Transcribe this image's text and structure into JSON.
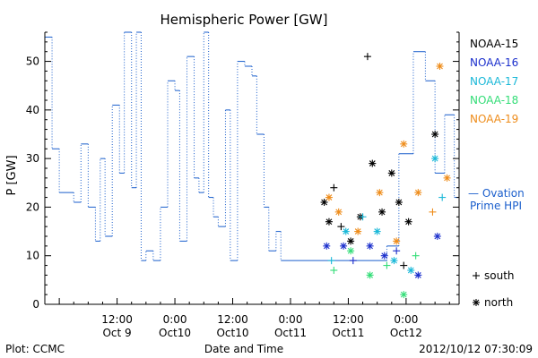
{
  "chart_data": {
    "type": "line",
    "title": "Hemispheric Power [GW]",
    "ylabel": "P [GW]",
    "xlabel": "Date and Time",
    "ylim": [
      0,
      56
    ],
    "yticks": [
      0,
      10,
      20,
      30,
      40,
      50
    ],
    "xlim": [
      "2012-10-08T21:00",
      "2012-10-12T11:00"
    ],
    "xticks": [
      {
        "t": "2012-10-09T12:00",
        "line1": "12:00",
        "line2": "Oct 9"
      },
      {
        "t": "2012-10-10T00:00",
        "line1": "0:00",
        "line2": "Oct10"
      },
      {
        "t": "2012-10-10T12:00",
        "line1": "12:00",
        "line2": "Oct10"
      },
      {
        "t": "2012-10-11T00:00",
        "line1": "0:00",
        "line2": "Oct11"
      },
      {
        "t": "2012-10-11T12:00",
        "line1": "12:00",
        "line2": "Oct11"
      },
      {
        "t": "2012-10-12T00:00",
        "line1": "0:00",
        "line2": "Oct12"
      }
    ],
    "grid": false,
    "legend_position": "right",
    "series": [
      {
        "name": "NOAA-15",
        "color": "#000000"
      },
      {
        "name": "NOAA-16",
        "color": "#1a2ecc"
      },
      {
        "name": "NOAA-17",
        "color": "#1ab8d8"
      },
      {
        "name": "NOAA-18",
        "color": "#33dd77"
      },
      {
        "name": "NOAA-19",
        "color": "#ee8c1a"
      }
    ],
    "ovation_label": [
      "— Ovation",
      "Prime HPI"
    ],
    "ovation_color": "#1a5ecc",
    "marker_legend": [
      {
        "symbol": "+",
        "label": "south"
      },
      {
        "symbol": "*",
        "label": "north"
      }
    ],
    "ovation_steps": [
      [
        "2012-10-08T21:00",
        55
      ],
      [
        "2012-10-08T22:30",
        32
      ],
      [
        "2012-10-09T00:00",
        23
      ],
      [
        "2012-10-09T03:00",
        21
      ],
      [
        "2012-10-09T04:30",
        33
      ],
      [
        "2012-10-09T06:00",
        20
      ],
      [
        "2012-10-09T07:30",
        13
      ],
      [
        "2012-10-09T08:30",
        30
      ],
      [
        "2012-10-09T09:30",
        14
      ],
      [
        "2012-10-09T11:00",
        41
      ],
      [
        "2012-10-09T12:30",
        27
      ],
      [
        "2012-10-09T13:30",
        56
      ],
      [
        "2012-10-09T15:00",
        24
      ],
      [
        "2012-10-09T16:00",
        56
      ],
      [
        "2012-10-09T17:00",
        9
      ],
      [
        "2012-10-09T18:00",
        11
      ],
      [
        "2012-10-09T19:30",
        9
      ],
      [
        "2012-10-09T21:00",
        20
      ],
      [
        "2012-10-09T22:30",
        46
      ],
      [
        "2012-10-10T00:00",
        44
      ],
      [
        "2012-10-10T01:00",
        13
      ],
      [
        "2012-10-10T02:30",
        51
      ],
      [
        "2012-10-10T04:00",
        26
      ],
      [
        "2012-10-10T05:00",
        23
      ],
      [
        "2012-10-10T06:00",
        56
      ],
      [
        "2012-10-10T07:00",
        22
      ],
      [
        "2012-10-10T08:00",
        18
      ],
      [
        "2012-10-10T09:00",
        16
      ],
      [
        "2012-10-10T10:30",
        40
      ],
      [
        "2012-10-10T11:30",
        9
      ],
      [
        "2012-10-10T13:00",
        50
      ],
      [
        "2012-10-10T14:30",
        49
      ],
      [
        "2012-10-10T16:00",
        47
      ],
      [
        "2012-10-10T17:00",
        35
      ],
      [
        "2012-10-10T18:30",
        20
      ],
      [
        "2012-10-10T19:30",
        11
      ],
      [
        "2012-10-10T21:00",
        15
      ],
      [
        "2012-10-10T22:00",
        9
      ],
      [
        "2012-10-11T20:00",
        12
      ],
      [
        "2012-10-11T22:30",
        31
      ],
      [
        "2012-10-12T01:30",
        52
      ],
      [
        "2012-10-12T04:00",
        46
      ],
      [
        "2012-10-12T06:00",
        27
      ],
      [
        "2012-10-12T08:00",
        39
      ],
      [
        "2012-10-12T10:00",
        22
      ]
    ],
    "points": [
      {
        "t": "2012-10-11T07:00",
        "y": 21,
        "series": "NOAA-15",
        "marker": "*"
      },
      {
        "t": "2012-10-11T08:00",
        "y": 17,
        "series": "NOAA-15",
        "marker": "*"
      },
      {
        "t": "2012-10-11T09:00",
        "y": 24,
        "series": "NOAA-15",
        "marker": "+"
      },
      {
        "t": "2012-10-11T10:30",
        "y": 16,
        "series": "NOAA-15",
        "marker": "+"
      },
      {
        "t": "2012-10-11T12:30",
        "y": 13,
        "series": "NOAA-15",
        "marker": "*"
      },
      {
        "t": "2012-10-11T14:30",
        "y": 18,
        "series": "NOAA-15",
        "marker": "*"
      },
      {
        "t": "2012-10-11T16:00",
        "y": 51,
        "series": "NOAA-15",
        "marker": "+"
      },
      {
        "t": "2012-10-11T17:00",
        "y": 29,
        "series": "NOAA-15",
        "marker": "*"
      },
      {
        "t": "2012-10-11T19:00",
        "y": 19,
        "series": "NOAA-15",
        "marker": "*"
      },
      {
        "t": "2012-10-11T21:00",
        "y": 27,
        "series": "NOAA-15",
        "marker": "*"
      },
      {
        "t": "2012-10-11T22:30",
        "y": 21,
        "series": "NOAA-15",
        "marker": "*"
      },
      {
        "t": "2012-10-11T23:30",
        "y": 8,
        "series": "NOAA-15",
        "marker": "+"
      },
      {
        "t": "2012-10-12T00:30",
        "y": 17,
        "series": "NOAA-15",
        "marker": "*"
      },
      {
        "t": "2012-10-12T06:00",
        "y": 35,
        "series": "NOAA-15",
        "marker": "*"
      },
      {
        "t": "2012-10-11T07:30",
        "y": 12,
        "series": "NOAA-16",
        "marker": "*"
      },
      {
        "t": "2012-10-11T11:00",
        "y": 12,
        "series": "NOAA-16",
        "marker": "*"
      },
      {
        "t": "2012-10-11T13:00",
        "y": 9,
        "series": "NOAA-16",
        "marker": "+"
      },
      {
        "t": "2012-10-11T16:30",
        "y": 12,
        "series": "NOAA-16",
        "marker": "*"
      },
      {
        "t": "2012-10-11T19:30",
        "y": 10,
        "series": "NOAA-16",
        "marker": "*"
      },
      {
        "t": "2012-10-11T22:00",
        "y": 11,
        "series": "NOAA-16",
        "marker": "+"
      },
      {
        "t": "2012-10-12T02:30",
        "y": 6,
        "series": "NOAA-16",
        "marker": "*"
      },
      {
        "t": "2012-10-12T06:30",
        "y": 14,
        "series": "NOAA-16",
        "marker": "*"
      },
      {
        "t": "2012-10-11T08:30",
        "y": 9,
        "series": "NOAA-17",
        "marker": "+"
      },
      {
        "t": "2012-10-11T11:30",
        "y": 15,
        "series": "NOAA-17",
        "marker": "*"
      },
      {
        "t": "2012-10-11T15:00",
        "y": 18,
        "series": "NOAA-17",
        "marker": "+"
      },
      {
        "t": "2012-10-11T18:00",
        "y": 15,
        "series": "NOAA-17",
        "marker": "*"
      },
      {
        "t": "2012-10-11T21:30",
        "y": 9,
        "series": "NOAA-17",
        "marker": "*"
      },
      {
        "t": "2012-10-12T01:00",
        "y": 7,
        "series": "NOAA-17",
        "marker": "*"
      },
      {
        "t": "2012-10-12T06:00",
        "y": 30,
        "series": "NOAA-17",
        "marker": "*"
      },
      {
        "t": "2012-10-12T07:30",
        "y": 22,
        "series": "NOAA-17",
        "marker": "+"
      },
      {
        "t": "2012-10-11T09:00",
        "y": 7,
        "series": "NOAA-18",
        "marker": "+"
      },
      {
        "t": "2012-10-11T12:30",
        "y": 11,
        "series": "NOAA-18",
        "marker": "*"
      },
      {
        "t": "2012-10-11T16:30",
        "y": 6,
        "series": "NOAA-18",
        "marker": "*"
      },
      {
        "t": "2012-10-11T20:00",
        "y": 8,
        "series": "NOAA-18",
        "marker": "+"
      },
      {
        "t": "2012-10-11T23:30",
        "y": 2,
        "series": "NOAA-18",
        "marker": "*"
      },
      {
        "t": "2012-10-12T02:00",
        "y": 10,
        "series": "NOAA-18",
        "marker": "+"
      },
      {
        "t": "2012-10-11T08:00",
        "y": 22,
        "series": "NOAA-19",
        "marker": "*"
      },
      {
        "t": "2012-10-11T10:00",
        "y": 19,
        "series": "NOAA-19",
        "marker": "*"
      },
      {
        "t": "2012-10-11T14:00",
        "y": 15,
        "series": "NOAA-19",
        "marker": "*"
      },
      {
        "t": "2012-10-11T18:30",
        "y": 23,
        "series": "NOAA-19",
        "marker": "*"
      },
      {
        "t": "2012-10-11T22:00",
        "y": 13,
        "series": "NOAA-19",
        "marker": "*"
      },
      {
        "t": "2012-10-11T23:30",
        "y": 33,
        "series": "NOAA-19",
        "marker": "*"
      },
      {
        "t": "2012-10-12T02:30",
        "y": 23,
        "series": "NOAA-19",
        "marker": "*"
      },
      {
        "t": "2012-10-12T05:30",
        "y": 19,
        "series": "NOAA-19",
        "marker": "+"
      },
      {
        "t": "2012-10-12T07:00",
        "y": 49,
        "series": "NOAA-19",
        "marker": "*"
      },
      {
        "t": "2012-10-12T08:30",
        "y": 26,
        "series": "NOAA-19",
        "marker": "*"
      }
    ]
  },
  "footer": {
    "plot_by": "Plot: CCMC",
    "timestamp": "2012/10/12 07:30:09"
  }
}
